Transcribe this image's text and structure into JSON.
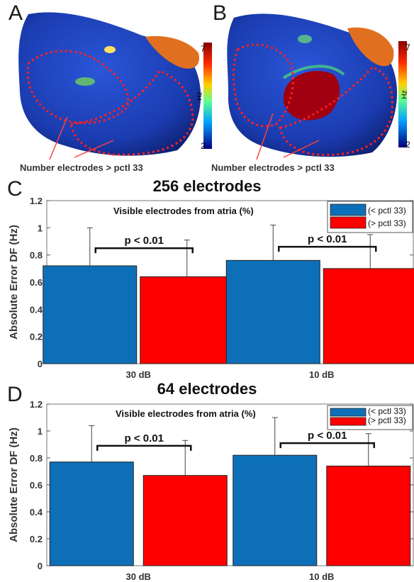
{
  "panels": {
    "A": {
      "letter": "A",
      "caption": "Number electrodes > pctl 33",
      "colorbar": {
        "max_label": "7",
        "min_label": "2",
        "unit": "Hz"
      }
    },
    "B": {
      "letter": "B",
      "caption": "Number electrodes > pctl 33",
      "colorbar": {
        "max_label": "7",
        "min_label": "2",
        "unit": "Hz"
      }
    }
  },
  "chart_data": [
    {
      "panel_letter": "C",
      "type": "bar",
      "title": "256 electrodes",
      "subtitle": "Visible electrodes from atria (%)",
      "ylabel": "Absolute Error DF (Hz)",
      "xlabel": "",
      "categories": [
        "30 dB",
        "10 dB"
      ],
      "ylim": [
        0,
        1.2
      ],
      "yticks": [
        "0",
        "0.2",
        "0.4",
        "0.6",
        "0.8",
        "1",
        "1.2"
      ],
      "legend_position": "top-right",
      "grid": false,
      "series": [
        {
          "name": "(< pctl 33)",
          "color": "#0d6fb8",
          "values": [
            0.72,
            0.76
          ],
          "errors": [
            0.28,
            0.26
          ]
        },
        {
          "name": "(> pctl 33)",
          "color": "#ff0000",
          "values": [
            0.64,
            0.7
          ],
          "errors": [
            0.27,
            0.25
          ]
        }
      ],
      "annotations": [
        "p < 0.01",
        "p < 0.01"
      ]
    },
    {
      "panel_letter": "D",
      "type": "bar",
      "title": "64 electrodes",
      "subtitle": "Visible electrodes from atria (%)",
      "ylabel": "Absolute Error DF (Hz)",
      "xlabel": "",
      "categories": [
        "30 dB",
        "10 dB"
      ],
      "ylim": [
        0,
        1.2
      ],
      "yticks": [
        "0",
        "0.2",
        "0.4",
        "0.6",
        "0.8",
        "1",
        "1.2"
      ],
      "legend_position": "top-right",
      "grid": false,
      "series": [
        {
          "name": "(< pctl 33)",
          "color": "#0d6fb8",
          "values": [
            0.77,
            0.82
          ],
          "errors": [
            0.27,
            0.28
          ]
        },
        {
          "name": "(> pctl 33)",
          "color": "#ff0000",
          "values": [
            0.67,
            0.74
          ],
          "errors": [
            0.26,
            0.24
          ]
        }
      ],
      "annotations": [
        "p < 0.01",
        "p < 0.01"
      ]
    }
  ]
}
